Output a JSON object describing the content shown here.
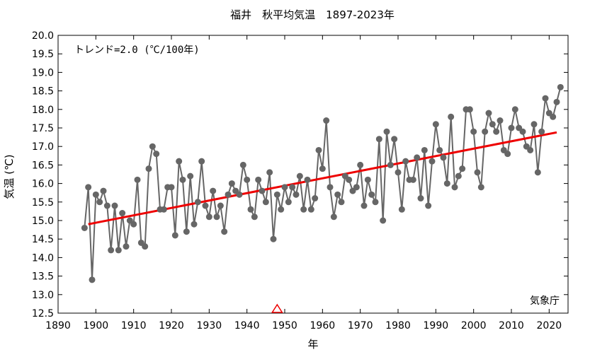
{
  "chart_data": {
    "type": "line",
    "title": "福井　秋平均気温　1897-2023年",
    "xlabel": "年",
    "ylabel": "気温 (℃)",
    "trend_label": "トレンド=2.0 (℃/100年)",
    "source": "気象庁",
    "xlim": [
      1890,
      2025
    ],
    "ylim": [
      12.5,
      20.0
    ],
    "x_ticks": [
      1890,
      1900,
      1910,
      1920,
      1930,
      1940,
      1950,
      1960,
      1970,
      1980,
      1990,
      2000,
      2010,
      2020
    ],
    "y_ticks": [
      12.5,
      13.0,
      13.5,
      14.0,
      14.5,
      15.0,
      15.5,
      16.0,
      16.5,
      17.0,
      17.5,
      18.0,
      18.5,
      19.0,
      19.5,
      20.0
    ],
    "grid": false,
    "series": [
      {
        "color": "#666666",
        "x": [
          1897,
          1898,
          1899,
          1900,
          1901,
          1902,
          1903,
          1904,
          1905,
          1906,
          1907,
          1908,
          1909,
          1910,
          1911,
          1912,
          1913,
          1914,
          1915,
          1916,
          1917,
          1918,
          1919,
          1920,
          1921,
          1922,
          1923,
          1924,
          1925,
          1926,
          1927,
          1928,
          1929,
          1930,
          1931,
          1932,
          1933,
          1934,
          1935,
          1936,
          1937,
          1938,
          1939,
          1940,
          1941,
          1942,
          1943,
          1944,
          1945,
          1946,
          1947,
          1948,
          1949,
          1950,
          1951,
          1952,
          1953,
          1954,
          1955,
          1956,
          1957,
          1958,
          1959,
          1960,
          1961,
          1962,
          1963,
          1964,
          1965,
          1966,
          1967,
          1968,
          1969,
          1970,
          1971,
          1972,
          1973,
          1974,
          1975,
          1976,
          1977,
          1978,
          1979,
          1980,
          1981,
          1982,
          1983,
          1984,
          1985,
          1986,
          1987,
          1988,
          1989,
          1990,
          1991,
          1992,
          1993,
          1994,
          1995,
          1996,
          1997,
          1998,
          1999,
          2000,
          2001,
          2002,
          2003,
          2004,
          2005,
          2006,
          2007,
          2008,
          2009,
          2010,
          2011,
          2012,
          2013,
          2014,
          2015,
          2016,
          2017,
          2018,
          2019,
          2020,
          2021,
          2022,
          2023
        ],
        "y": [
          14.8,
          15.9,
          13.4,
          15.7,
          15.5,
          15.8,
          15.4,
          14.2,
          15.4,
          14.2,
          15.2,
          14.3,
          15.0,
          14.9,
          16.1,
          14.4,
          14.3,
          16.4,
          17.0,
          16.8,
          15.3,
          15.3,
          15.9,
          15.9,
          14.6,
          16.6,
          16.1,
          14.7,
          16.2,
          14.9,
          15.5,
          16.6,
          15.4,
          15.1,
          15.8,
          15.1,
          15.4,
          14.7,
          15.7,
          16.0,
          15.8,
          15.7,
          16.5,
          16.1,
          15.3,
          15.1,
          16.1,
          15.8,
          15.5,
          16.3,
          14.5,
          15.7,
          15.3,
          15.9,
          15.5,
          15.9,
          15.7,
          16.2,
          15.3,
          16.1,
          15.3,
          15.6,
          16.9,
          16.4,
          17.7,
          15.9,
          15.1,
          15.7,
          15.5,
          16.2,
          16.1,
          15.8,
          15.9,
          16.5,
          15.4,
          16.1,
          15.7,
          15.5,
          17.2,
          15.0,
          17.4,
          16.5,
          17.2,
          16.3,
          15.3,
          16.6,
          16.1,
          16.1,
          16.7,
          15.6,
          16.9,
          15.4,
          16.6,
          17.6,
          16.9,
          16.7,
          16.0,
          17.8,
          15.9,
          16.2,
          16.4,
          18.0,
          18.0,
          17.4,
          16.3,
          15.9,
          17.4,
          17.9,
          17.6,
          17.4,
          17.7,
          16.9,
          16.8,
          17.5,
          18.0,
          17.5,
          17.4,
          17.0,
          16.9,
          17.6,
          16.3,
          17.4,
          18.3,
          17.9,
          17.8,
          18.2,
          18.6
        ]
      }
    ],
    "trend": {
      "color": "#ee0000",
      "x": [
        1898,
        2022
      ],
      "y": [
        14.9,
        17.38
      ]
    },
    "marker_years": [
      1948
    ],
    "marker_color": "#ee0000"
  }
}
